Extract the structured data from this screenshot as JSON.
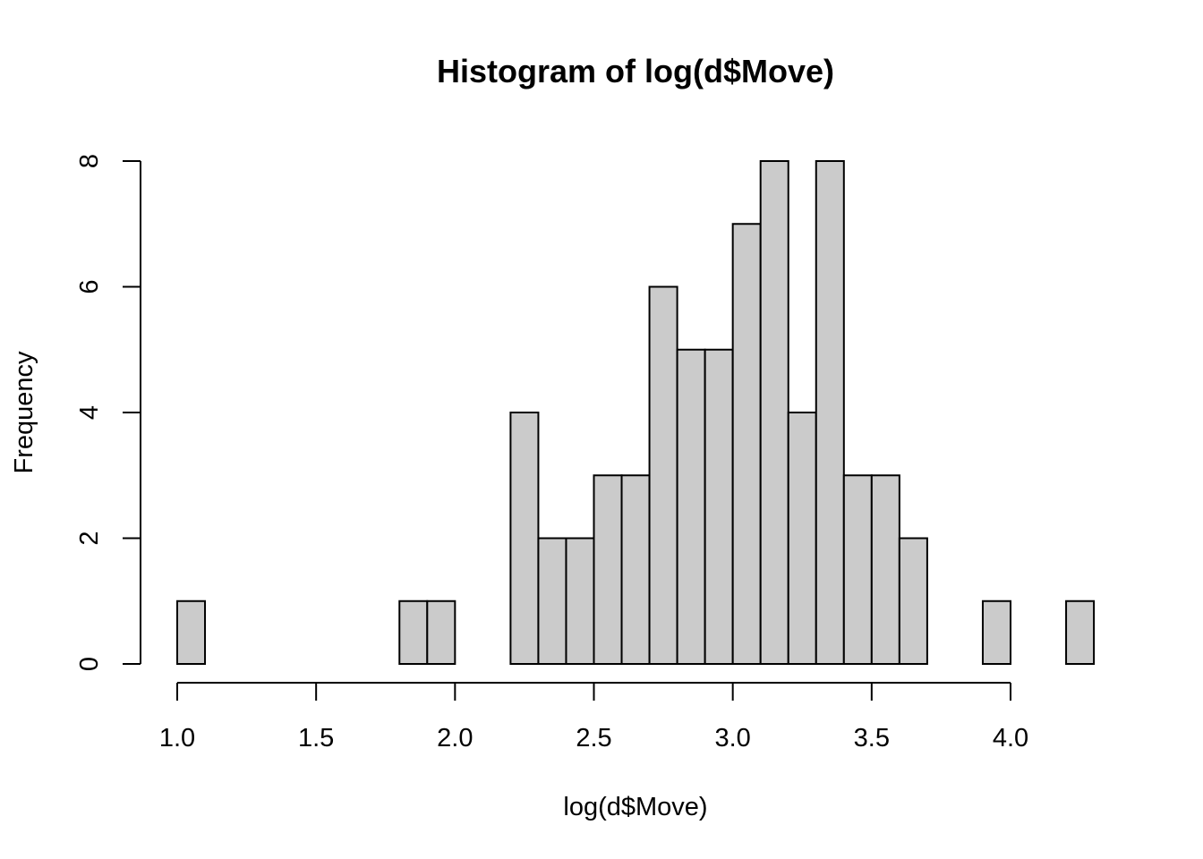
{
  "chart_data": {
    "type": "bar",
    "title": "Histogram of log(d$Move)",
    "xlabel": "log(d$Move)",
    "ylabel": "Frequency",
    "bin_width": 0.1,
    "bin_starts": [
      1.0,
      1.1,
      1.2,
      1.3,
      1.4,
      1.5,
      1.6,
      1.7,
      1.8,
      1.9,
      2.0,
      2.1,
      2.2,
      2.3,
      2.4,
      2.5,
      2.6,
      2.7,
      2.8,
      2.9,
      3.0,
      3.1,
      3.2,
      3.3,
      3.4,
      3.5,
      3.6,
      3.7,
      3.8,
      3.9,
      4.0,
      4.1,
      4.2
    ],
    "values": [
      1,
      0,
      0,
      0,
      0,
      0,
      0,
      0,
      1,
      1,
      0,
      0,
      4,
      2,
      2,
      3,
      3,
      6,
      5,
      5,
      7,
      8,
      4,
      8,
      3,
      3,
      2,
      0,
      0,
      1,
      0,
      0,
      1
    ],
    "xlim": [
      1.0,
      4.3
    ],
    "ylim": [
      0,
      8
    ],
    "xticks": [
      "1.0",
      "1.5",
      "2.0",
      "2.5",
      "3.0",
      "3.5",
      "4.0"
    ],
    "yticks": [
      "0",
      "2",
      "4",
      "6",
      "8"
    ],
    "colors": {
      "bar_fill": "#cbcbcb",
      "bar_stroke": "#000000"
    },
    "grid": false
  }
}
